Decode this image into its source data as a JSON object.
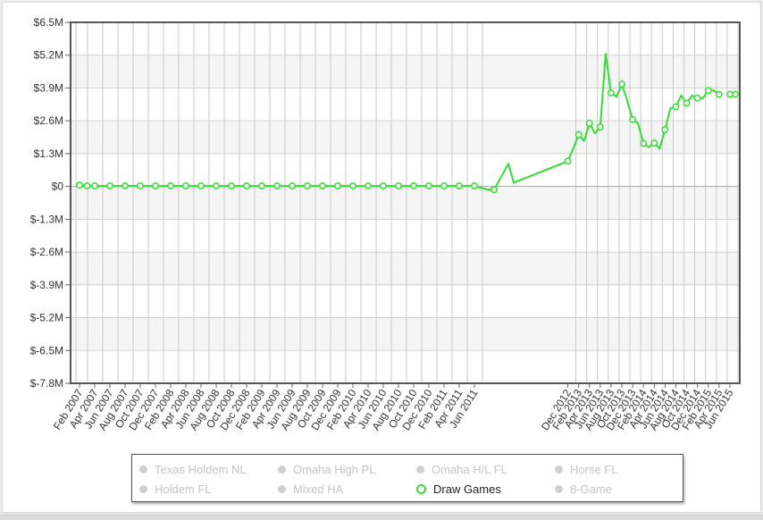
{
  "chart_data": {
    "type": "line",
    "title": "",
    "xlabel": "",
    "ylabel": "",
    "ylim": [
      -7.8,
      6.5
    ],
    "y_unit": "M",
    "y_tick_values": [
      6.5,
      5.2,
      3.9,
      2.6,
      1.3,
      0,
      -1.3,
      -2.6,
      -3.9,
      -5.2,
      -6.5,
      -7.8
    ],
    "y_tick_labels": [
      "$6.5M",
      "$5.2M",
      "$3.9M",
      "$2.6M",
      "$1.3M",
      "$0",
      "$-1.3M",
      "$-2.6M",
      "$-3.9M",
      "$-5.2M",
      "$-6.5M",
      "$-7.8M"
    ],
    "x_tick_labels": [
      "Feb 2007",
      "Apr 2007",
      "Jun 2007",
      "Aug 2007",
      "Oct 2007",
      "Dec 2007",
      "Feb 2008",
      "Apr 2008",
      "Jun 2008",
      "Aug 2008",
      "Oct 2008",
      "Dec 2008",
      "Feb 2009",
      "Apr 2009",
      "Jun 2009",
      "Aug 2009",
      "Oct 2009",
      "Dec 2009",
      "Feb 2010",
      "Apr 2010",
      "Jun 2010",
      "Aug 2010",
      "Oct 2010",
      "Dec 2010",
      "Feb 2011",
      "Apr 2011",
      "Jun 2011",
      "Dec 2012",
      "Feb 2013",
      "Apr 2013",
      "Jun 2013",
      "Aug 2013",
      "Oct 2013",
      "Dec 2013",
      "Feb 2014",
      "Apr 2014",
      "Jun 2014",
      "Aug 2014",
      "Oct 2014",
      "Dec 2014",
      "Feb 2015",
      "Apr 2015",
      "Jun 2015"
    ],
    "grid": true,
    "legend_position": "bottom",
    "series": [
      {
        "name": "Draw Games",
        "color": "#33dd33",
        "marker_months": [
          "Feb 2007",
          "Mar 2007",
          "Apr 2007",
          "Jun 2007",
          "Aug 2007",
          "Oct 2007",
          "Dec 2007",
          "Feb 2008",
          "Apr 2008",
          "Jun 2008",
          "Aug 2008",
          "Oct 2008",
          "Dec 2008",
          "Feb 2009",
          "Apr 2009",
          "Jun 2009",
          "Aug 2009",
          "Oct 2009",
          "Dec 2009",
          "Feb 2010",
          "Apr 2010",
          "Jun 2010",
          "Aug 2010",
          "Oct 2010",
          "Dec 2010",
          "Feb 2011",
          "Apr 2011",
          "Jun 2011",
          "Dec 2011",
          "Dec 2012",
          "Feb 2013",
          "Apr 2013",
          "Jun 2013",
          "Aug 2013",
          "Oct 2013",
          "Dec 2013",
          "Feb 2014",
          "Apr 2014",
          "Jun 2014",
          "Aug 2014",
          "Oct 2014",
          "Dec 2014",
          "Feb 2015",
          "Apr 2015",
          "Jun 2015",
          "Jul 2015"
        ],
        "points": [
          {
            "x": "Feb 2007",
            "y": 0.05
          },
          {
            "x": "Mar 2007",
            "y": 0.02
          },
          {
            "x": "Jun 2011",
            "y": 0.02
          },
          {
            "x": "Jul 2011",
            "y": -0.1
          },
          {
            "x": "Nov 2011",
            "y": -0.15
          },
          {
            "x": "Dec 2011",
            "y": -0.13
          },
          {
            "x": "Jan 2012",
            "y": 0.9
          },
          {
            "x": "Feb 2012",
            "y": 0.15
          },
          {
            "x": "Dec 2012",
            "y": 1.0
          },
          {
            "x": "Jan 2013",
            "y": 1.5
          },
          {
            "x": "Feb 2013",
            "y": 2.05
          },
          {
            "x": "Mar 2013",
            "y": 1.8
          },
          {
            "x": "Apr 2013",
            "y": 2.5
          },
          {
            "x": "May 2013",
            "y": 2.1
          },
          {
            "x": "Jun 2013",
            "y": 2.35
          },
          {
            "x": "Jul 2013",
            "y": 5.25
          },
          {
            "x": "Aug 2013",
            "y": 3.7
          },
          {
            "x": "Sep 2013",
            "y": 3.55
          },
          {
            "x": "Oct 2013",
            "y": 4.05
          },
          {
            "x": "Nov 2013",
            "y": 3.4
          },
          {
            "x": "Dec 2013",
            "y": 2.65
          },
          {
            "x": "Jan 2014",
            "y": 2.5
          },
          {
            "x": "Feb 2014",
            "y": 1.7
          },
          {
            "x": "Mar 2014",
            "y": 1.55
          },
          {
            "x": "Apr 2014",
            "y": 1.72
          },
          {
            "x": "May 2014",
            "y": 1.5
          },
          {
            "x": "Jun 2014",
            "y": 2.25
          },
          {
            "x": "Jul 2014",
            "y": 3.1
          },
          {
            "x": "Aug 2014",
            "y": 3.15
          },
          {
            "x": "Sep 2014",
            "y": 3.6
          },
          {
            "x": "Oct 2014",
            "y": 3.3
          },
          {
            "x": "Nov 2014",
            "y": 3.6
          },
          {
            "x": "Dec 2014",
            "y": 3.5
          },
          {
            "x": "Jan 2015",
            "y": 3.5
          },
          {
            "x": "Feb 2015",
            "y": 3.8
          },
          {
            "x": "Mar 2015",
            "y": 3.8
          },
          {
            "x": "Apr 2015",
            "y": 3.65
          }
        ]
      }
    ]
  },
  "legend": {
    "items": [
      {
        "label": "Texas Holdem NL",
        "active": false
      },
      {
        "label": "Omaha High PL",
        "active": false
      },
      {
        "label": "Omaha H/L FL",
        "active": false
      },
      {
        "label": "Horse FL",
        "active": false
      },
      {
        "label": "Holdem FL",
        "active": false
      },
      {
        "label": "Mixed HA",
        "active": false
      },
      {
        "label": "Draw Games",
        "active": true
      },
      {
        "label": "8-Game",
        "active": false
      }
    ]
  }
}
